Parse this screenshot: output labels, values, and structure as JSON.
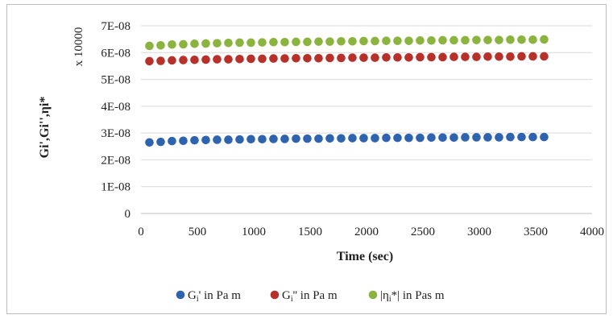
{
  "chart_data": {
    "type": "scatter",
    "xlabel": "Time (sec)",
    "ylabel": "Gi',Gi'',ηi*",
    "y_multiplier_label": "x 10000",
    "xlim": [
      0,
      4000
    ],
    "ylim": [
      0,
      7e-08
    ],
    "x_ticks": [
      "0",
      "500",
      "1000",
      "1500",
      "2000",
      "2500",
      "3000",
      "3500",
      "4000"
    ],
    "y_ticks": [
      "0",
      "1E-08",
      "2E-08",
      "3E-08",
      "4E-08",
      "5E-08",
      "6E-08",
      "7E-08"
    ],
    "grid": "horizontal",
    "legend_position": "bottom",
    "x": [
      75,
      175,
      275,
      375,
      475,
      575,
      675,
      775,
      875,
      975,
      1075,
      1175,
      1275,
      1375,
      1475,
      1575,
      1675,
      1775,
      1875,
      1975,
      2075,
      2175,
      2275,
      2375,
      2475,
      2575,
      2675,
      2775,
      2875,
      2975,
      3075,
      3175,
      3275,
      3375,
      3475,
      3575
    ],
    "series": [
      {
        "name": "Gi' in Pa m",
        "name_main": "G",
        "name_sub": "i",
        "name_rest": "' in Pa m",
        "color": "#2e63b0",
        "values": [
          2.65e-08,
          2.67e-08,
          2.7e-08,
          2.71e-08,
          2.73e-08,
          2.74e-08,
          2.75e-08,
          2.75e-08,
          2.76e-08,
          2.77e-08,
          2.77e-08,
          2.78e-08,
          2.78e-08,
          2.79e-08,
          2.79e-08,
          2.79e-08,
          2.8e-08,
          2.8e-08,
          2.81e-08,
          2.81e-08,
          2.81e-08,
          2.82e-08,
          2.82e-08,
          2.82e-08,
          2.82e-08,
          2.83e-08,
          2.83e-08,
          2.83e-08,
          2.84e-08,
          2.84e-08,
          2.84e-08,
          2.84e-08,
          2.85e-08,
          2.85e-08,
          2.85e-08,
          2.85e-08
        ]
      },
      {
        "name": "Gi'' in Pa m",
        "name_main": "G",
        "name_sub": "i",
        "name_rest": "'' in Pa m",
        "color": "#b8302a",
        "values": [
          5.68e-08,
          5.69e-08,
          5.71e-08,
          5.72e-08,
          5.73e-08,
          5.74e-08,
          5.75e-08,
          5.75e-08,
          5.76e-08,
          5.77e-08,
          5.77e-08,
          5.78e-08,
          5.78e-08,
          5.79e-08,
          5.79e-08,
          5.79e-08,
          5.8e-08,
          5.8e-08,
          5.81e-08,
          5.81e-08,
          5.81e-08,
          5.82e-08,
          5.82e-08,
          5.82e-08,
          5.83e-08,
          5.83e-08,
          5.83e-08,
          5.84e-08,
          5.84e-08,
          5.84e-08,
          5.85e-08,
          5.85e-08,
          5.85e-08,
          5.86e-08,
          5.86e-08,
          5.86e-08
        ]
      },
      {
        "name": "|ηi*| in Pas m",
        "name_main": "|η",
        "name_sub": "i",
        "name_rest": "*| in Pas m",
        "color": "#8ab43e",
        "values": [
          6.25e-08,
          6.27e-08,
          6.3e-08,
          6.31e-08,
          6.33e-08,
          6.34e-08,
          6.35e-08,
          6.36e-08,
          6.37e-08,
          6.37e-08,
          6.38e-08,
          6.39e-08,
          6.39e-08,
          6.4e-08,
          6.4e-08,
          6.41e-08,
          6.41e-08,
          6.42e-08,
          6.42e-08,
          6.43e-08,
          6.43e-08,
          6.44e-08,
          6.44e-08,
          6.44e-08,
          6.45e-08,
          6.45e-08,
          6.46e-08,
          6.46e-08,
          6.46e-08,
          6.47e-08,
          6.47e-08,
          6.47e-08,
          6.48e-08,
          6.48e-08,
          6.48e-08,
          6.49e-08
        ]
      }
    ]
  }
}
